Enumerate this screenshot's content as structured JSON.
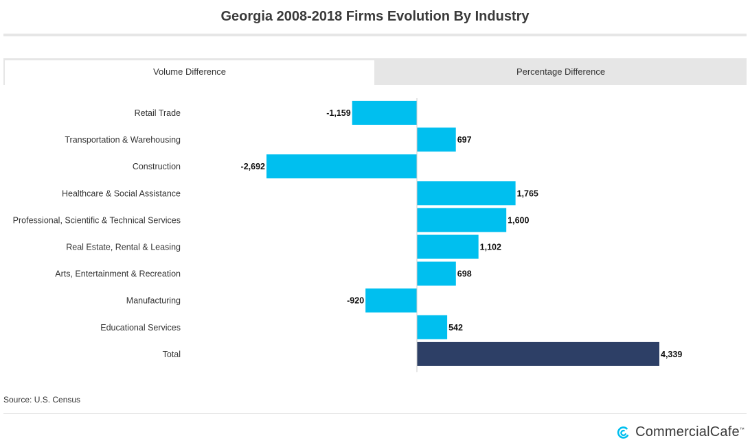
{
  "header": {
    "title": "Georgia 2008-2018 Firms Evolution By Industry"
  },
  "tabs": [
    {
      "label": "Volume Difference",
      "active": true
    },
    {
      "label": "Percentage Difference",
      "active": false
    }
  ],
  "footer": {
    "source": "Source: U.S. Census",
    "brand": "CommercialCafe",
    "brand_tm": "™",
    "logo_icon": "commercialcafe-logo-icon"
  },
  "colors": {
    "bar": "#00bfef",
    "total_bar": "#2d3f66",
    "logo": "#00bfef"
  },
  "chart_data": {
    "type": "bar",
    "orientation": "horizontal",
    "categories": [
      "Retail Trade",
      "Transportation & Warehousing",
      "Construction",
      "Healthcare & Social Assistance",
      "Professional, Scientific & Technical Services",
      "Real Estate, Rental & Leasing",
      "Arts, Entertainment & Recreation",
      "Manufacturing",
      "Educational Services",
      "Total"
    ],
    "values": [
      -1159,
      697,
      -2692,
      1765,
      1600,
      1102,
      698,
      -920,
      542,
      4339
    ],
    "labels": [
      "-1,159",
      "697",
      "-2,692",
      "1,765",
      "1,600",
      "1,102",
      "698",
      "-920",
      "542",
      "4,339"
    ],
    "highlight_category": "Total",
    "xlim": [
      -7400,
      5900
    ],
    "title": "",
    "xlabel": "",
    "ylabel": "",
    "grid": false,
    "legend": "none"
  }
}
